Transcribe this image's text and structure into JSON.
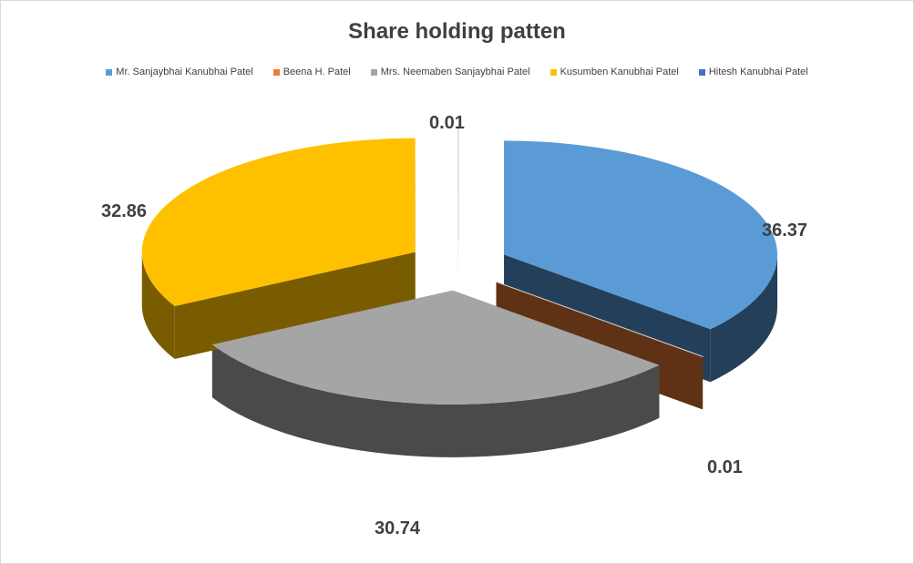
{
  "chart_data": {
    "type": "pie",
    "style": "3d-exploded",
    "title": "Share holding patten",
    "legend_position": "top",
    "series": [
      {
        "name": "Mr. Sanjaybhai Kanubhai Patel",
        "value": 36.37,
        "label": "36.37",
        "color": "#5B9BD5",
        "side": "#243F5A"
      },
      {
        "name": "Beena H. Patel",
        "value": 0.01,
        "label": "0.01",
        "color": "#ED7D31",
        "side": "#5F3215"
      },
      {
        "name": "Mrs. Neemaben Sanjaybhai Patel",
        "value": 30.74,
        "label": "30.74",
        "color": "#A5A5A5",
        "side": "#4a4a4a"
      },
      {
        "name": "Kusumben Kanubhai Patel",
        "value": 32.86,
        "label": "32.86",
        "color": "#FFC000",
        "side": "#7A5C00"
      },
      {
        "name": "Hitesh Kanubhai Patel",
        "value": 0.01,
        "label": "0.01",
        "color": "#4472C4",
        "side": "#203864"
      }
    ]
  }
}
